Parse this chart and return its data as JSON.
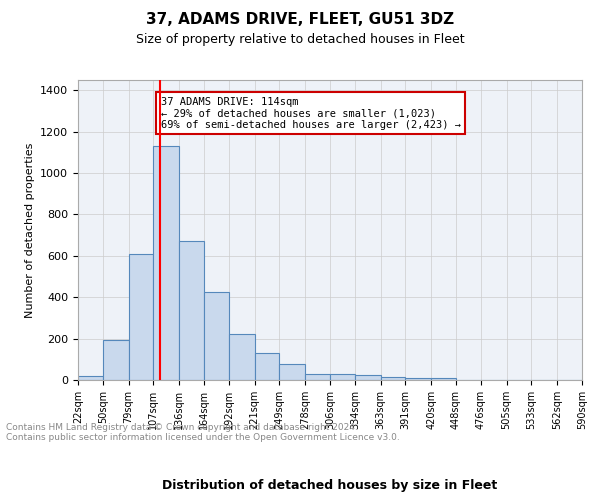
{
  "title": "37, ADAMS DRIVE, FLEET, GU51 3DZ",
  "subtitle": "Size of property relative to detached houses in Fleet",
  "xlabel": "Distribution of detached houses by size in Fleet",
  "ylabel": "Number of detached properties",
  "bar_color": "#c9d9ed",
  "bar_edge_color": "#5588bb",
  "background_color": "#eef2f8",
  "red_line_x": 114,
  "annotation_text": "37 ADAMS DRIVE: 114sqm\n← 29% of detached houses are smaller (1,023)\n69% of semi-detached houses are larger (2,423) →",
  "annotation_box_color": "#ffffff",
  "annotation_box_edge": "#cc0000",
  "footer_text": "Contains HM Land Registry data © Crown copyright and database right 2024.\nContains public sector information licensed under the Open Government Licence v3.0.",
  "bin_edges": [
    22,
    50,
    79,
    107,
    136,
    164,
    192,
    221,
    249,
    278,
    306,
    334,
    363,
    391,
    420,
    448,
    476,
    505,
    533,
    562,
    590
  ],
  "bar_heights": [
    20,
    195,
    610,
    1130,
    670,
    425,
    220,
    130,
    75,
    30,
    28,
    22,
    15,
    10,
    10,
    0,
    0,
    0,
    0,
    0
  ],
  "ylim": [
    0,
    1450
  ],
  "yticks": [
    0,
    200,
    400,
    600,
    800,
    1000,
    1200,
    1400
  ]
}
